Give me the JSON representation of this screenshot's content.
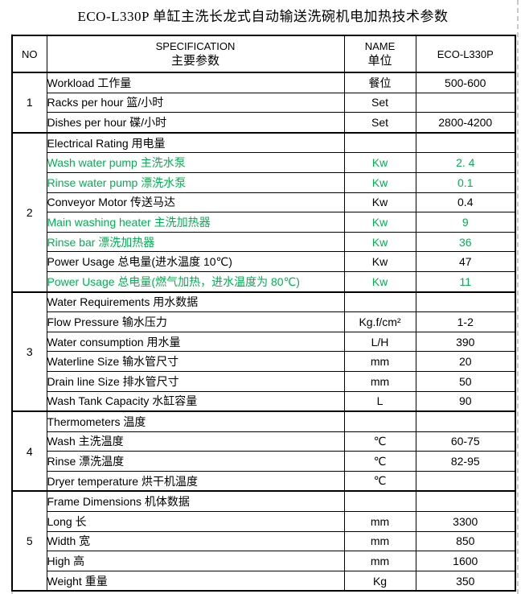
{
  "title": "ECO-L330P 单缸主洗长龙式自动输送洗碗机电加热技术参数",
  "colors": {
    "accent_green": "#00b050",
    "border": "#000000",
    "page_break_dash": "#c9c9c9",
    "background": "#ffffff"
  },
  "header": {
    "no": "NO",
    "spec_en": "SPECIFICATION",
    "spec_cn": "主要参数",
    "name_en": "NAME",
    "name_cn": "单位",
    "model": "ECO-L330P"
  },
  "sections": [
    {
      "no": "1",
      "rows": [
        {
          "spec": "Workload 工作量",
          "unit": "餐位",
          "value": "500-600",
          "green": false
        },
        {
          "spec": "Racks per hour 篮/小时",
          "unit": "Set",
          "value": "",
          "green": false
        },
        {
          "spec": "Dishes per hour 碟/小时",
          "unit": "Set",
          "value": "2800-4200",
          "green": false
        }
      ]
    },
    {
      "no": "2",
      "rows": [
        {
          "spec": "Electrical Rating 用电量",
          "unit": "",
          "value": "",
          "green": false
        },
        {
          "spec": "Wash water pump 主洗水泵",
          "unit": "Kw",
          "value": "2. 4",
          "green": true
        },
        {
          "spec": "Rinse water pump 漂洗水泵",
          "unit": "Kw",
          "value": "0.1",
          "green": true
        },
        {
          "spec": "Conveyor Motor 传送马达",
          "unit": "Kw",
          "value": "0.4",
          "green": false
        },
        {
          "spec": "Main washing heater 主洗加热器",
          "unit": "Kw",
          "value": "9",
          "green": true
        },
        {
          "spec": "Rinse bar 漂洗加热器",
          "unit": "Kw",
          "value": "36",
          "green": true
        },
        {
          "spec": "Power Usage 总电量(进水温度 10℃)",
          "unit": "Kw",
          "value": "47",
          "green": false
        },
        {
          "spec": "Power Usage 总电量(燃气加热，进水温度为 80℃)",
          "unit": "Kw",
          "value": "11",
          "green": true
        }
      ]
    },
    {
      "no": "3",
      "rows": [
        {
          "spec": "Water Requirements 用水数据",
          "unit": "",
          "value": "",
          "green": false
        },
        {
          "spec": "Flow Pressure 输水压力",
          "unit": "Kg.f/cm²",
          "value": "1-2",
          "green": false
        },
        {
          "spec": "Water consumption 用水量",
          "unit": "L/H",
          "value": "390",
          "green": false
        },
        {
          "spec": "Waterline Size 输水管尺寸",
          "unit": "mm",
          "value": "20",
          "green": false
        },
        {
          "spec": "Drain line Size 排水管尺寸",
          "unit": "mm",
          "value": "50",
          "green": false
        },
        {
          "spec": "Wash Tank Capacity 水缸容量",
          "unit": "L",
          "value": "90",
          "green": false
        }
      ]
    },
    {
      "no": "4",
      "rows": [
        {
          "spec": "Thermometers 温度",
          "unit": "",
          "value": "",
          "green": false
        },
        {
          "spec": "Wash 主洗温度",
          "unit": "℃",
          "value": "60-75",
          "green": false
        },
        {
          "spec": "Rinse 漂洗温度",
          "unit": "℃",
          "value": "82-95",
          "green": false
        },
        {
          "spec": "Dryer temperature 烘干机温度",
          "unit": "℃",
          "value": "",
          "green": false
        }
      ]
    },
    {
      "no": "5",
      "rows": [
        {
          "spec": "Frame Dimensions 机体数据",
          "unit": "",
          "value": "",
          "green": false
        },
        {
          "spec": "Long 长",
          "unit": "mm",
          "value": "3300",
          "green": false
        },
        {
          "spec": "Width 宽",
          "unit": "mm",
          "value": "850",
          "green": false
        },
        {
          "spec": "High 高",
          "unit": "mm",
          "value": "1600",
          "green": false
        },
        {
          "spec": "Weight 重量",
          "unit": "Kg",
          "value": "350",
          "green": false
        }
      ]
    }
  ]
}
